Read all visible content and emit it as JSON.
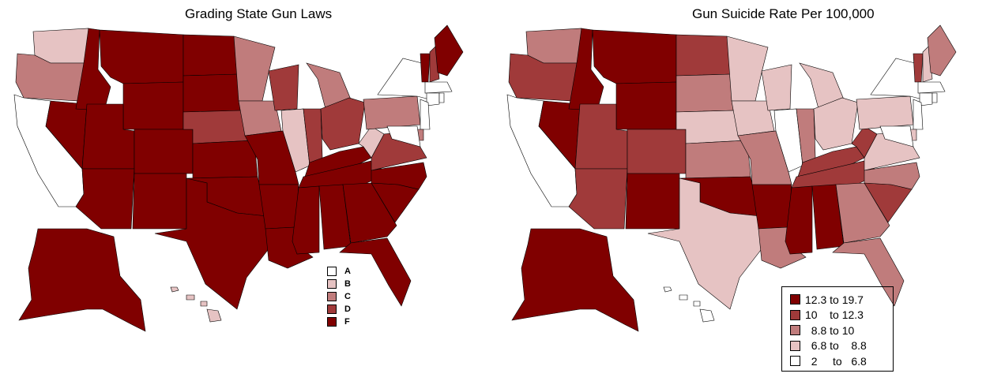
{
  "left_map": {
    "title": "Grading State Gun Laws",
    "legend": [
      {
        "label": "A",
        "color": "#ffffff"
      },
      {
        "label": "B",
        "color": "#e6c3c3"
      },
      {
        "label": "C",
        "color": "#c07c7c"
      },
      {
        "label": "D",
        "color": "#a03a3a"
      },
      {
        "label": "F",
        "color": "#800000"
      }
    ],
    "state_grades": {
      "WA": "B",
      "OR": "C",
      "CA": "A",
      "NV": "F",
      "ID": "F",
      "MT": "F",
      "WY": "F",
      "UT": "F",
      "AZ": "F",
      "CO": "F",
      "NM": "F",
      "ND": "F",
      "SD": "F",
      "NE": "D",
      "KS": "F",
      "OK": "F",
      "TX": "F",
      "MN": "C",
      "IA": "C",
      "MO": "F",
      "AR": "F",
      "LA": "F",
      "WI": "D",
      "IL": "B",
      "MI": "C",
      "IN": "D",
      "OH": "D",
      "KY": "F",
      "TN": "F",
      "MS": "F",
      "AL": "F",
      "GA": "F",
      "FL": "F",
      "SC": "F",
      "NC": "F",
      "VA": "D",
      "WV": "B",
      "PA": "C",
      "NY": "A",
      "VT": "F",
      "NH": "D",
      "ME": "F",
      "MA": "A",
      "CT": "A",
      "RI": "A",
      "NJ": "A",
      "DE": "C",
      "MD": "A",
      "AK": "F",
      "HI": "B"
    }
  },
  "right_map": {
    "title": "Gun Suicide Rate Per 100,000",
    "legend": [
      {
        "label": "12.3 to 19.7",
        "color": "#800000"
      },
      {
        "label": "10    to 12.3",
        "color": "#a03a3a"
      },
      {
        "label": "  8.8 to 10",
        "color": "#c07c7c"
      },
      {
        "label": "  6.8 to    8.8",
        "color": "#e6c3c3"
      },
      {
        "label": "  2     to   6.8",
        "color": "#ffffff"
      }
    ],
    "state_classes": {
      "WA": "C",
      "OR": "D",
      "CA": "A",
      "NV": "F",
      "ID": "F",
      "MT": "F",
      "WY": "F",
      "UT": "D",
      "AZ": "D",
      "CO": "D",
      "NM": "F",
      "ND": "D",
      "SD": "C",
      "NE": "B",
      "KS": "C",
      "OK": "F",
      "TX": "B",
      "MN": "B",
      "IA": "B",
      "MO": "C",
      "AR": "F",
      "LA": "C",
      "WI": "B",
      "IL": "A",
      "MI": "B",
      "IN": "C",
      "OH": "B",
      "KY": "D",
      "TN": "D",
      "MS": "F",
      "AL": "F",
      "GA": "C",
      "FL": "C",
      "SC": "D",
      "NC": "C",
      "VA": "B",
      "WV": "D",
      "PA": "B",
      "NY": "A",
      "VT": "D",
      "NH": "B",
      "ME": "C",
      "MA": "A",
      "CT": "A",
      "RI": "A",
      "NJ": "A",
      "DE": "B",
      "MD": "A",
      "AK": "F",
      "HI": "A"
    }
  },
  "colors": {
    "A": "#ffffff",
    "B": "#e6c3c3",
    "C": "#c07c7c",
    "D": "#a03a3a",
    "F": "#800000"
  }
}
